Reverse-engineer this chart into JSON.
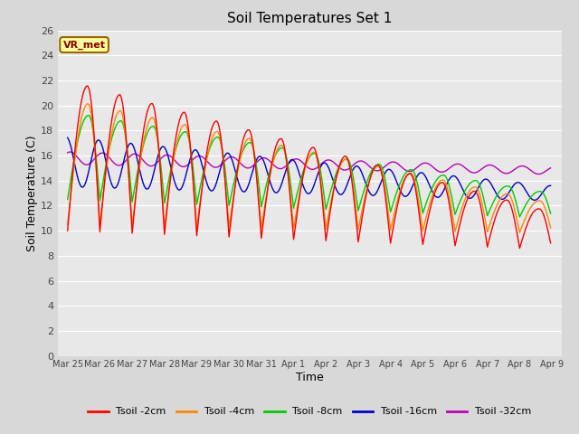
{
  "title": "Soil Temperatures Set 1",
  "xlabel": "Time",
  "ylabel": "Soil Temperature (C)",
  "ylim": [
    0,
    26
  ],
  "yticks": [
    0,
    2,
    4,
    6,
    8,
    10,
    12,
    14,
    16,
    18,
    20,
    22,
    24,
    26
  ],
  "n_days": 15,
  "colors": {
    "s2": "#ff0000",
    "s4": "#ff8800",
    "s8": "#00cc00",
    "s16": "#0000cc",
    "s32": "#bb00bb"
  },
  "labels": {
    "s2": "Tsoil -2cm",
    "s4": "Tsoil -4cm",
    "s8": "Tsoil -8cm",
    "s16": "Tsoil -16cm",
    "s32": "Tsoil -32cm"
  },
  "fig_bg": "#d8d8d8",
  "plot_bg": "#e8e8e8",
  "grid_color": "#ffffff",
  "annotation_text": "VR_met",
  "annotation_fg": "#880000",
  "annotation_bg": "#ffff99",
  "annotation_border": "#996600",
  "tick_label_color": "#444444",
  "title_color": "#000000",
  "lw": 1.0
}
